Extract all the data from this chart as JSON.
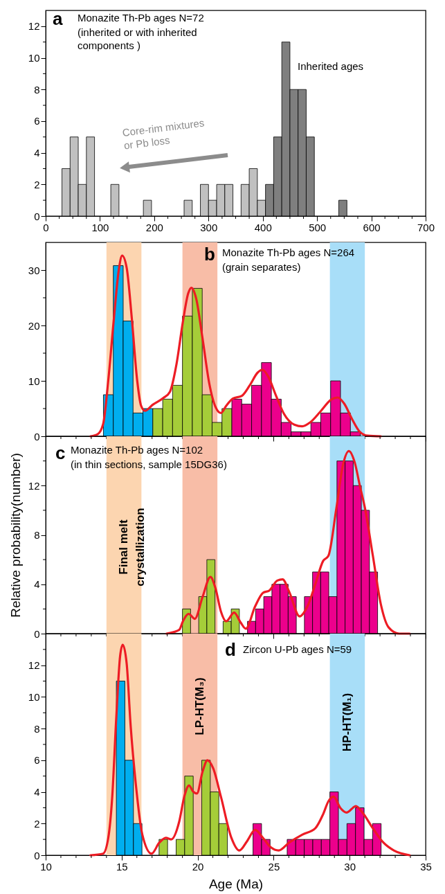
{
  "chart_data": [
    {
      "type": "histogram",
      "title": "Monazite Th-Pb ages N=72",
      "subtitle": "(inherited or with inherited components )",
      "annotations": [
        "a",
        "Inherited ages",
        "Core-rim mixtures or Pb loss"
      ],
      "xlim": [
        0,
        700
      ],
      "xticks": [
        0,
        {
          "value": 25,
          "label": null
        },
        {
          "value": 50,
          "label": null
        },
        {
          "value": 75,
          "label": null
        },
        100,
        {
          "value": 125,
          "label": null
        },
        {
          "value": 150,
          "label": null
        },
        {
          "value": 175,
          "label": null
        },
        200,
        {
          "value": 225,
          "label": null
        },
        {
          "value": 250,
          "label": null
        },
        {
          "value": 275,
          "label": null
        },
        300,
        {
          "value": 325,
          "label": null
        },
        {
          "value": 350,
          "label": null
        },
        {
          "value": 375,
          "label": null
        },
        400,
        {
          "value": 425,
          "label": null
        },
        {
          "value": 450,
          "label": null
        },
        {
          "value": 475,
          "label": null
        },
        500,
        {
          "value": 525,
          "label": null
        },
        {
          "value": 550,
          "label": null
        },
        {
          "value": 575,
          "label": null
        },
        600,
        {
          "value": 625,
          "label": null
        },
        {
          "value": 650,
          "label": null
        },
        {
          "value": 675,
          "label": null
        },
        700
      ],
      "ylim": [
        0,
        13
      ],
      "yticks": [
        0,
        {
          "value": 1,
          "label": null
        },
        2,
        {
          "value": 3,
          "label": null
        },
        4,
        {
          "value": 5,
          "label": null
        },
        6,
        {
          "value": 7,
          "label": null
        },
        8,
        {
          "value": 9,
          "label": null
        },
        10,
        {
          "value": 11,
          "label": null
        },
        12
      ],
      "bins": [
        30,
        45,
        60,
        75,
        90,
        105,
        120,
        135,
        150,
        165,
        180,
        195,
        210,
        225,
        240,
        255,
        270,
        285,
        300,
        315,
        330,
        345,
        360,
        375,
        390,
        405,
        420,
        435,
        450,
        465,
        480,
        495,
        510,
        525,
        540,
        555
      ],
      "values": [
        3,
        5,
        2,
        5,
        0,
        0,
        2,
        0,
        0,
        0,
        1,
        0,
        0,
        0,
        0,
        1,
        0,
        2,
        1,
        2,
        2,
        0,
        2,
        3,
        1,
        2,
        5,
        11,
        8,
        8,
        5,
        0,
        0,
        0,
        1
      ],
      "colors": [
        "#c0c0c0",
        "#c0c0c0",
        "#c0c0c0",
        "#c0c0c0",
        "#c0c0c0",
        "#c0c0c0",
        "#c0c0c0",
        "#c0c0c0",
        "#c0c0c0",
        "#c0c0c0",
        "#c0c0c0",
        "#c0c0c0",
        "#c0c0c0",
        "#c0c0c0",
        "#c0c0c0",
        "#c0c0c0",
        "#c0c0c0",
        "#c0c0c0",
        "#c0c0c0",
        "#c0c0c0",
        "#c0c0c0",
        "#c0c0c0",
        "#c0c0c0",
        "#c0c0c0",
        "#c0c0c0",
        "#7f7f7f",
        "#7f7f7f",
        "#7f7f7f",
        "#7f7f7f",
        "#7f7f7f",
        "#7f7f7f",
        "#7f7f7f",
        "#7f7f7f",
        "#7f7f7f",
        "#7f7f7f"
      ]
    },
    {
      "type": "histogram",
      "title": "Monazite Th-Pb ages N=264",
      "subtitle": "(grain separates)",
      "annotations": [
        "b"
      ],
      "xlim": [
        10,
        35
      ],
      "xticks": [
        10,
        {
          "value": 11,
          "label": null
        },
        {
          "value": 12,
          "label": null
        },
        {
          "value": 13,
          "label": null
        },
        {
          "value": 14,
          "label": null
        },
        15,
        {
          "value": 16,
          "label": null
        },
        {
          "value": 17,
          "label": null
        },
        {
          "value": 18,
          "label": null
        },
        {
          "value": 19,
          "label": null
        },
        20,
        {
          "value": 21,
          "label": null
        },
        {
          "value": 22,
          "label": null
        },
        {
          "value": 23,
          "label": null
        },
        {
          "value": 24,
          "label": null
        },
        25,
        {
          "value": 26,
          "label": null
        },
        {
          "value": 27,
          "label": null
        },
        {
          "value": 28,
          "label": null
        },
        {
          "value": 29,
          "label": null
        },
        30,
        {
          "value": 31,
          "label": null
        },
        {
          "value": 32,
          "label": null
        },
        {
          "value": 33,
          "label": null
        },
        {
          "value": 34,
          "label": null
        },
        35
      ],
      "ylim": [
        0,
        35
      ],
      "yticks": [
        0,
        {
          "value": 5,
          "label": null
        },
        10,
        {
          "value": 15,
          "label": null
        },
        20,
        {
          "value": 25,
          "label": null
        },
        30
      ],
      "tick_labels": "y",
      "bands": [
        {
          "axis": "x",
          "from": 14.0,
          "to": 16.3,
          "color": "#fcd5b0"
        },
        {
          "axis": "x",
          "from": 19.0,
          "to": 21.3,
          "color": "#f8bda7"
        },
        {
          "axis": "x",
          "from": 28.7,
          "to": 31.0,
          "color": "#a8def8"
        }
      ],
      "series": [
        {
          "type": "histogram",
          "bins": [
            13.8,
            14.45,
            15.1,
            15.75,
            16.4,
            17.05,
            17.7,
            18.35,
            19.0,
            19.65,
            20.3,
            20.95,
            21.6,
            22.25,
            22.9,
            23.55,
            24.2,
            24.85,
            25.5,
            26.15,
            26.8,
            27.45,
            28.1,
            28.75,
            29.4,
            30.05,
            30.7
          ],
          "values": [
            7.5,
            30.8,
            20.8,
            4.2,
            5.0,
            5.0,
            6.7,
            9.2,
            21.7,
            26.7,
            7.5,
            2.5,
            5.0,
            6.7,
            5.8,
            9.2,
            13.3,
            6.7,
            2.5,
            0.8,
            0.8,
            2.5,
            4.2,
            10.0,
            4.2,
            0.8
          ],
          "colors": [
            "#00aeef",
            "#00aeef",
            "#00aeef",
            "#00aeef",
            "#00aeef",
            "#a5cd39",
            "#a5cd39",
            "#a5cd39",
            "#a5cd39",
            "#a5cd39",
            "#a5cd39",
            "#a5cd39",
            "#a5cd39",
            "#ec008c",
            "#ec008c",
            "#ec008c",
            "#ec008c",
            "#ec008c",
            "#ec008c",
            "#ec008c",
            "#ec008c",
            "#ec008c",
            "#ec008c",
            "#ec008c",
            "#ec008c",
            "#ec008c"
          ]
        },
        {
          "type": "line",
          "color": "#ed1c24",
          "x": [
            12.95,
            13.43,
            13.78,
            14.12,
            14.47,
            14.81,
            15.03,
            15.33,
            15.67,
            16.02,
            16.28,
            16.53,
            17.05,
            17.74,
            18.17,
            18.6,
            19.03,
            19.38,
            19.59,
            19.9,
            20.33,
            20.76,
            21.19,
            21.53,
            21.88,
            22.31,
            22.91,
            23.43,
            23.95,
            24.26,
            24.64,
            25.16,
            25.67,
            26.36,
            26.88,
            27.4,
            28.09,
            28.78,
            29.21,
            29.64,
            30.16,
            30.67,
            31.19,
            32.05
          ],
          "values": [
            0,
            0.4,
            2.2,
            10.1,
            20.7,
            30.0,
            32.6,
            30.4,
            21.2,
            10.1,
            5.5,
            4.6,
            5.7,
            6.9,
            8.0,
            12.9,
            20.7,
            25.8,
            26.8,
            24.9,
            17.5,
            9.6,
            5.2,
            4.2,
            5.5,
            6.8,
            7.3,
            9.2,
            11.5,
            12.0,
            10.8,
            7.3,
            4.1,
            2.1,
            1.8,
            2.5,
            4.5,
            6.6,
            7.0,
            5.9,
            3.1,
            0.8,
            0.1,
            0
          ]
        }
      ]
    },
    {
      "type": "histogram",
      "title": "Monazite Th-Pb ages N=102",
      "subtitle": "(in thin sections, sample 15DG36)",
      "annotations": [
        "c"
      ],
      "ylabel": "Relative probability(number)",
      "xlim": [
        10,
        35
      ],
      "xticks": [
        10,
        {
          "value": 11,
          "label": null
        },
        {
          "value": 12,
          "label": null
        },
        {
          "value": 13,
          "label": null
        },
        {
          "value": 14,
          "label": null
        },
        15,
        {
          "value": 16,
          "label": null
        },
        {
          "value": 17,
          "label": null
        },
        {
          "value": 18,
          "label": null
        },
        {
          "value": 19,
          "label": null
        },
        20,
        {
          "value": 21,
          "label": null
        },
        {
          "value": 22,
          "label": null
        },
        {
          "value": 23,
          "label": null
        },
        {
          "value": 24,
          "label": null
        },
        25,
        {
          "value": 26,
          "label": null
        },
        {
          "value": 27,
          "label": null
        },
        {
          "value": 28,
          "label": null
        },
        {
          "value": 29,
          "label": null
        },
        30,
        {
          "value": 31,
          "label": null
        },
        {
          "value": 32,
          "label": null
        },
        {
          "value": 33,
          "label": null
        },
        {
          "value": 34,
          "label": null
        },
        35
      ],
      "ylim": [
        0,
        16
      ],
      "yticks": [
        0,
        {
          "value": 2,
          "label": null
        },
        4,
        {
          "value": 6,
          "label": null
        },
        8,
        {
          "value": 10,
          "label": null
        },
        12,
        {
          "value": 14,
          "label": null
        }
      ],
      "tick_labels": "y",
      "bands": [
        {
          "axis": "x",
          "from": 14.0,
          "to": 16.3,
          "color": "#fcd5b0",
          "label": "Final melt crystallization"
        },
        {
          "axis": "x",
          "from": 19.0,
          "to": 21.3,
          "color": "#f8bda7"
        },
        {
          "axis": "x",
          "from": 28.7,
          "to": 31.0,
          "color": "#a8def8"
        }
      ],
      "series": [
        {
          "type": "histogram",
          "bins": [
            19.0,
            19.535,
            20.07,
            20.605,
            21.14,
            21.675,
            22.21,
            22.745,
            23.28,
            23.815,
            24.35,
            24.885,
            25.42,
            25.955,
            26.49,
            27.025,
            27.56,
            28.095,
            28.63,
            29.165,
            29.7,
            30.235,
            30.77,
            31.305,
            31.84
          ],
          "values": [
            2,
            0,
            3,
            6,
            0,
            1,
            2,
            0,
            1,
            2,
            3,
            4,
            4,
            3,
            0,
            3,
            5,
            5,
            3,
            14,
            14,
            12,
            10,
            5
          ],
          "colors": [
            "#a5cd39",
            "#a5cd39",
            "#a5cd39",
            "#a5cd39",
            "#a5cd39",
            "#a5cd39",
            "#a5cd39",
            "#a5cd39",
            "#ec008c",
            "#ec008c",
            "#ec008c",
            "#ec008c",
            "#ec008c",
            "#ec008c",
            "#ec008c",
            "#ec008c",
            "#ec008c",
            "#ec008c",
            "#ec008c",
            "#ec008c",
            "#ec008c",
            "#ec008c",
            "#ec008c",
            "#ec008c"
          ]
        },
        {
          "type": "line",
          "color": "#ed1c24",
          "x": [
            17.95,
            18.78,
            19.03,
            19.41,
            19.81,
            20.33,
            20.84,
            21.19,
            21.53,
            21.88,
            22.4,
            22.83,
            23.17,
            23.78,
            24.29,
            24.72,
            25.24,
            25.59,
            26.02,
            26.71,
            27.22,
            27.74,
            28.26,
            28.6,
            29.12,
            29.55,
            29.95,
            30.33,
            30.67,
            31.02,
            31.53,
            32.05,
            32.57,
            33.26,
            33.95
          ],
          "values": [
            0,
            0.3,
            1.0,
            1.6,
            1.2,
            3.0,
            4.6,
            3.6,
            1.8,
            1.0,
            1.7,
            0.9,
            0.4,
            2.2,
            3.3,
            3.5,
            4.3,
            4.4,
            3.4,
            1.4,
            2.2,
            4.0,
            5.9,
            6.3,
            10.1,
            13.6,
            14.8,
            13.9,
            12.0,
            10.1,
            6.3,
            2.4,
            0.5,
            0,
            0
          ]
        }
      ]
    },
    {
      "type": "histogram",
      "title": "Zircon U-Pb ages N=59",
      "annotations": [
        "d"
      ],
      "xlabel": "Age (Ma)",
      "xlim": [
        10,
        35
      ],
      "xticks": [
        10,
        {
          "value": 11,
          "label": null
        },
        {
          "value": 12,
          "label": null
        },
        {
          "value": 13,
          "label": null
        },
        {
          "value": 14,
          "label": null
        },
        15,
        {
          "value": 16,
          "label": null
        },
        {
          "value": 17,
          "label": null
        },
        {
          "value": 18,
          "label": null
        },
        {
          "value": 19,
          "label": null
        },
        20,
        {
          "value": 21,
          "label": null
        },
        {
          "value": 22,
          "label": null
        },
        {
          "value": 23,
          "label": null
        },
        {
          "value": 24,
          "label": null
        },
        25,
        {
          "value": 26,
          "label": null
        },
        {
          "value": 27,
          "label": null
        },
        {
          "value": 28,
          "label": null
        },
        {
          "value": 29,
          "label": null
        },
        30,
        {
          "value": 31,
          "label": null
        },
        {
          "value": 32,
          "label": null
        },
        {
          "value": 33,
          "label": null
        },
        {
          "value": 34,
          "label": null
        },
        35
      ],
      "ylim": [
        0,
        14
      ],
      "yticks": [
        0,
        {
          "value": 1,
          "label": null
        },
        2,
        {
          "value": 3,
          "label": null
        },
        4,
        {
          "value": 5,
          "label": null
        },
        6,
        {
          "value": 7,
          "label": null
        },
        8,
        {
          "value": 9,
          "label": null
        },
        10,
        {
          "value": 11,
          "label": null
        },
        12,
        {
          "value": 13,
          "label": null
        }
      ],
      "bands": [
        {
          "axis": "x",
          "from": 14.0,
          "to": 16.3,
          "color": "#fcd5b0"
        },
        {
          "axis": "x",
          "from": 19.0,
          "to": 21.3,
          "color": "#f8bda7",
          "label": "LP-HT(M₃)"
        },
        {
          "axis": "x",
          "from": 28.7,
          "to": 31.0,
          "color": "#a8def8",
          "label": "HP-HT(M₁)"
        }
      ],
      "series": [
        {
          "type": "histogram",
          "bins": [
            14.65,
            15.212,
            15.774,
            16.336,
            16.898,
            17.46,
            18.022,
            18.584,
            19.146,
            19.708,
            20.27,
            20.832,
            21.394,
            21.956,
            22.518,
            23.08,
            23.642,
            24.204,
            24.766,
            25.328,
            25.89,
            26.452,
            27.014,
            27.576,
            28.138,
            28.7,
            29.262,
            29.824,
            30.386,
            30.948,
            31.51,
            32.072
          ],
          "values": [
            11,
            6,
            2,
            0,
            0,
            1,
            0,
            1,
            5,
            0,
            6,
            4,
            2,
            0,
            0,
            0,
            2,
            1,
            0,
            0,
            1,
            1,
            1,
            1,
            1,
            4,
            1,
            2,
            3,
            1,
            2
          ],
          "colors": [
            "#00aeef",
            "#00aeef",
            "#00aeef",
            "#a5cd39",
            "#a5cd39",
            "#a5cd39",
            "#a5cd39",
            "#a5cd39",
            "#a5cd39",
            "#a5cd39",
            "#a5cd39",
            "#a5cd39",
            "#a5cd39",
            "#a5cd39",
            "#a5cd39",
            "#a5cd39",
            "#ec008c",
            "#ec008c",
            "#ec008c",
            "#ec008c",
            "#ec008c",
            "#ec008c",
            "#ec008c",
            "#ec008c",
            "#ec008c",
            "#ec008c",
            "#ec008c",
            "#ec008c",
            "#ec008c",
            "#ec008c",
            "#ec008c"
          ]
        },
        {
          "type": "line",
          "color": "#ed1c24",
          "x": [
            12.95,
            13.78,
            14.12,
            14.38,
            14.64,
            14.9,
            15.07,
            15.33,
            15.59,
            15.93,
            16.36,
            16.97,
            17.48,
            17.91,
            18.26,
            18.78,
            19.12,
            19.43,
            19.72,
            19.95,
            20.33,
            20.64,
            21.02,
            21.53,
            22.22,
            22.74,
            23.26,
            23.78,
            24.29,
            24.81,
            25.33,
            26.02,
            26.88,
            27.74,
            28.26,
            28.6,
            28.95,
            29.38,
            29.81,
            30.41,
            30.84,
            31.53,
            32.22,
            32.91,
            33.95
          ],
          "values": [
            0,
            0.1,
            1.1,
            3.7,
            8.6,
            12.6,
            13.3,
            12.1,
            8.2,
            4.5,
            1.3,
            0.1,
            0.8,
            1.1,
            1.0,
            2.1,
            3.7,
            4.4,
            4.0,
            3.9,
            5.3,
            6.0,
            5.5,
            3.7,
            1.1,
            0.3,
            0.9,
            1.6,
            1.1,
            0.5,
            0.3,
            0.8,
            1.3,
            1.7,
            2.6,
            3.4,
            3.7,
            3.0,
            2.7,
            3.1,
            2.7,
            1.7,
            0.8,
            0.3,
            0
          ]
        }
      ]
    }
  ]
}
